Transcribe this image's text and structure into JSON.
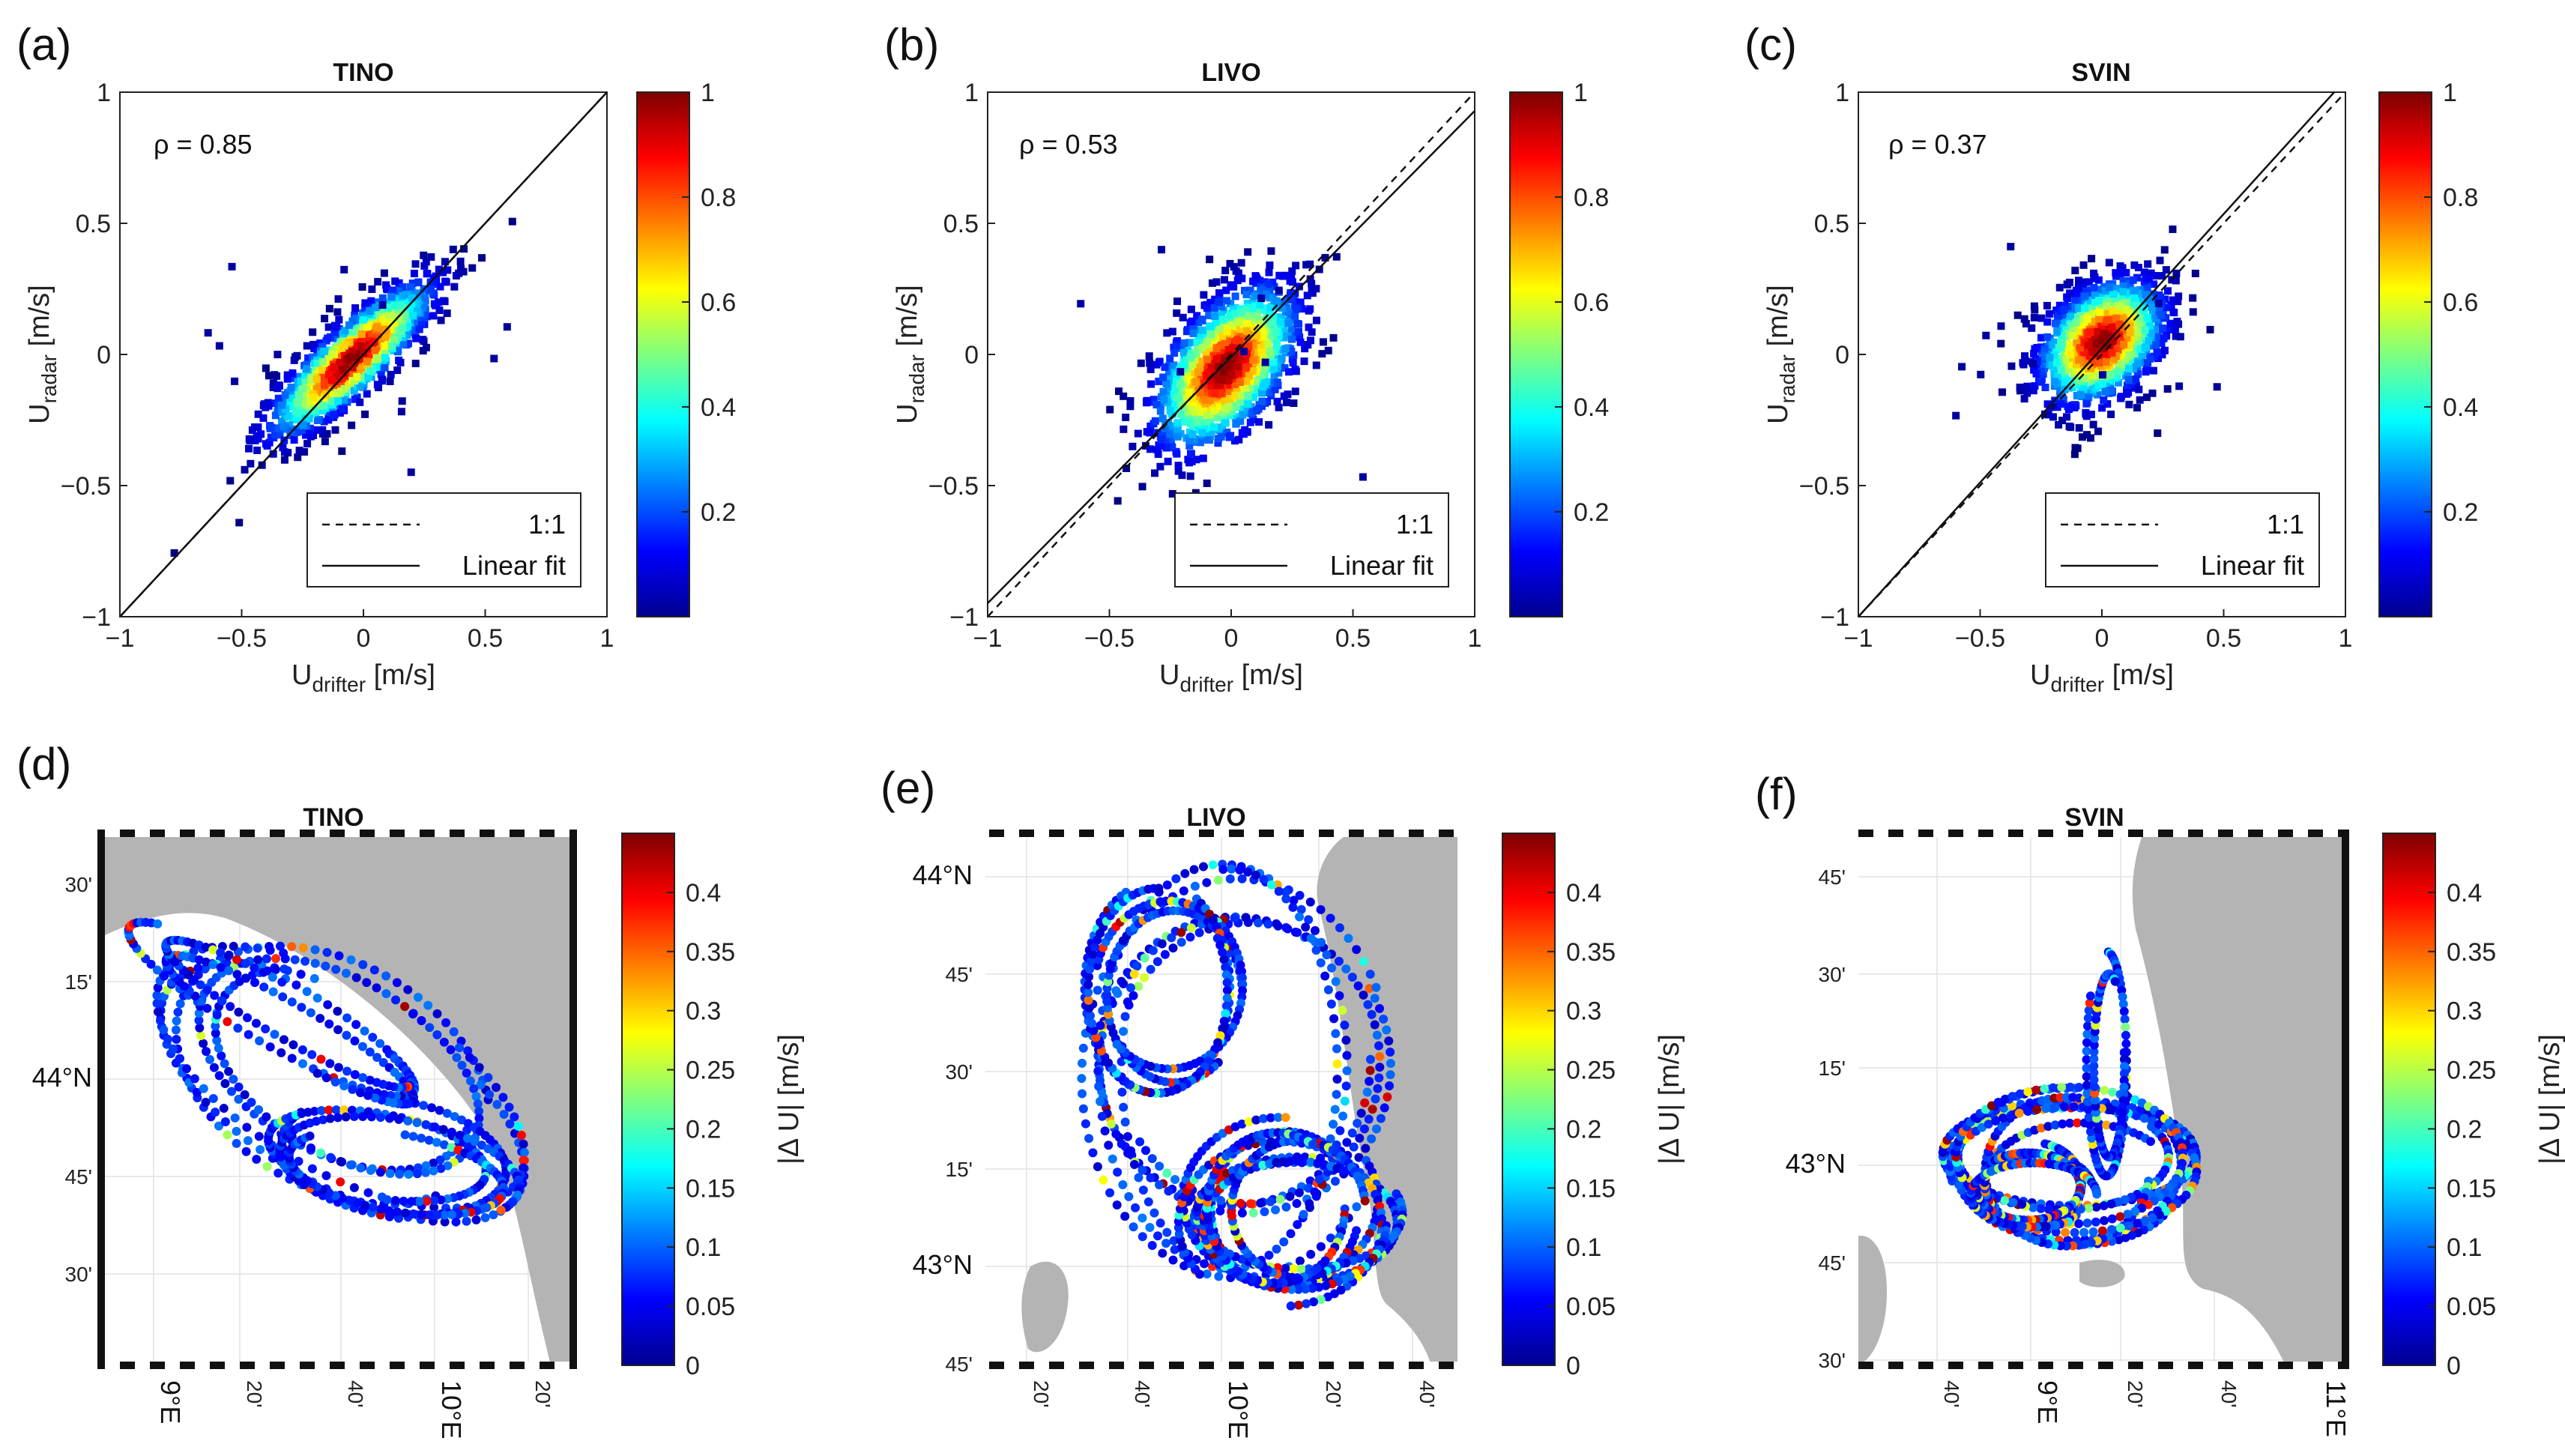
{
  "scatter_panels": [
    {
      "label": "(a)",
      "title": "TINO",
      "rho_text": "ρ = 0.85"
    },
    {
      "label": "(b)",
      "title": "LIVO",
      "rho_text": "ρ = 0.53"
    },
    {
      "label": "(c)",
      "title": "SVIN",
      "rho_text": "ρ = 0.37"
    }
  ],
  "scatter_axes": {
    "xlabel_main": "U",
    "xlabel_sub": "drifter",
    "xlabel_unit": " [m/s]",
    "ylabel_main": "U",
    "ylabel_sub": "radar",
    "ylabel_unit": " [m/s]",
    "xticks": [
      "−1",
      "−0.5",
      "0",
      "0.5",
      "1"
    ],
    "yticks": [
      "1",
      "0.5",
      "0",
      "−0.5",
      "−1"
    ],
    "legend": [
      "1:1",
      "Linear fit"
    ],
    "colorbar_ticks": [
      "1",
      "0.8",
      "0.6",
      "0.4",
      "0.2"
    ]
  },
  "map_panels": [
    {
      "label": "(d)",
      "title": "TINO",
      "lat_ticks": [
        "30'",
        "15'",
        "44°N",
        "45'",
        "30'"
      ],
      "lon_ticks": [
        "9°E",
        "20'",
        "40'",
        "10°E",
        "20'"
      ]
    },
    {
      "label": "(e)",
      "title": "LIVO",
      "lat_ticks": [
        "44°N",
        "45'",
        "30'",
        "15'",
        "43°N",
        "45'"
      ],
      "lon_ticks": [
        "20'",
        "40'",
        "10°E",
        "20'",
        "40'"
      ]
    },
    {
      "label": "(f)",
      "title": "SVIN",
      "lat_ticks": [
        "45'",
        "30'",
        "15'",
        "43°N",
        "45'",
        "30'"
      ],
      "lon_ticks": [
        "40'",
        "9°E",
        "20'",
        "40'",
        "11°E"
      ]
    }
  ],
  "map_colorbar": {
    "label": "|Δ U| [m/s]",
    "ticks": [
      "0.4",
      "0.35",
      "0.3",
      "0.25",
      "0.2",
      "0.15",
      "0.1",
      "0.05",
      "0"
    ]
  },
  "chart_data": [
    {
      "type": "heatmap",
      "title": "TINO",
      "panel": "(a)",
      "xlabel": "U_drifter [m/s]",
      "ylabel": "U_radar [m/s]",
      "xlim": [
        -1,
        1
      ],
      "ylim": [
        -1,
        1
      ],
      "rho": 0.85,
      "density_center": [
        -0.05,
        -0.02
      ],
      "fit_slope": 1.0,
      "fit_intercept": 0.0,
      "colorbar_range": [
        0,
        1
      ]
    },
    {
      "type": "heatmap",
      "title": "LIVO",
      "panel": "(b)",
      "xlabel": "U_drifter [m/s]",
      "ylabel": "U_radar [m/s]",
      "xlim": [
        -1,
        1
      ],
      "ylim": [
        -1,
        1
      ],
      "rho": 0.53,
      "density_center": [
        -0.02,
        -0.05
      ],
      "fit_slope": 1.0,
      "fit_intercept": 0.05,
      "colorbar_range": [
        0,
        1
      ]
    },
    {
      "type": "heatmap",
      "title": "SVIN",
      "panel": "(c)",
      "xlabel": "U_drifter [m/s]",
      "ylabel": "U_radar [m/s]",
      "xlim": [
        -1,
        1
      ],
      "ylim": [
        -1,
        1
      ],
      "rho": 0.37,
      "density_center": [
        0.0,
        0.05
      ],
      "fit_slope": 1.0,
      "fit_intercept": 0.0,
      "colorbar_range": [
        0,
        1
      ]
    },
    {
      "type": "scatter",
      "title": "TINO",
      "panel": "(d)",
      "color_label": "|Δ U| [m/s]",
      "colorbar_range": [
        0,
        0.45
      ]
    },
    {
      "type": "scatter",
      "title": "LIVO",
      "panel": "(e)",
      "color_label": "|Δ U| [m/s]",
      "colorbar_range": [
        0,
        0.45
      ]
    },
    {
      "type": "scatter",
      "title": "SVIN",
      "panel": "(f)",
      "color_label": "|Δ U| [m/s]",
      "colorbar_range": [
        0,
        0.45
      ]
    }
  ]
}
